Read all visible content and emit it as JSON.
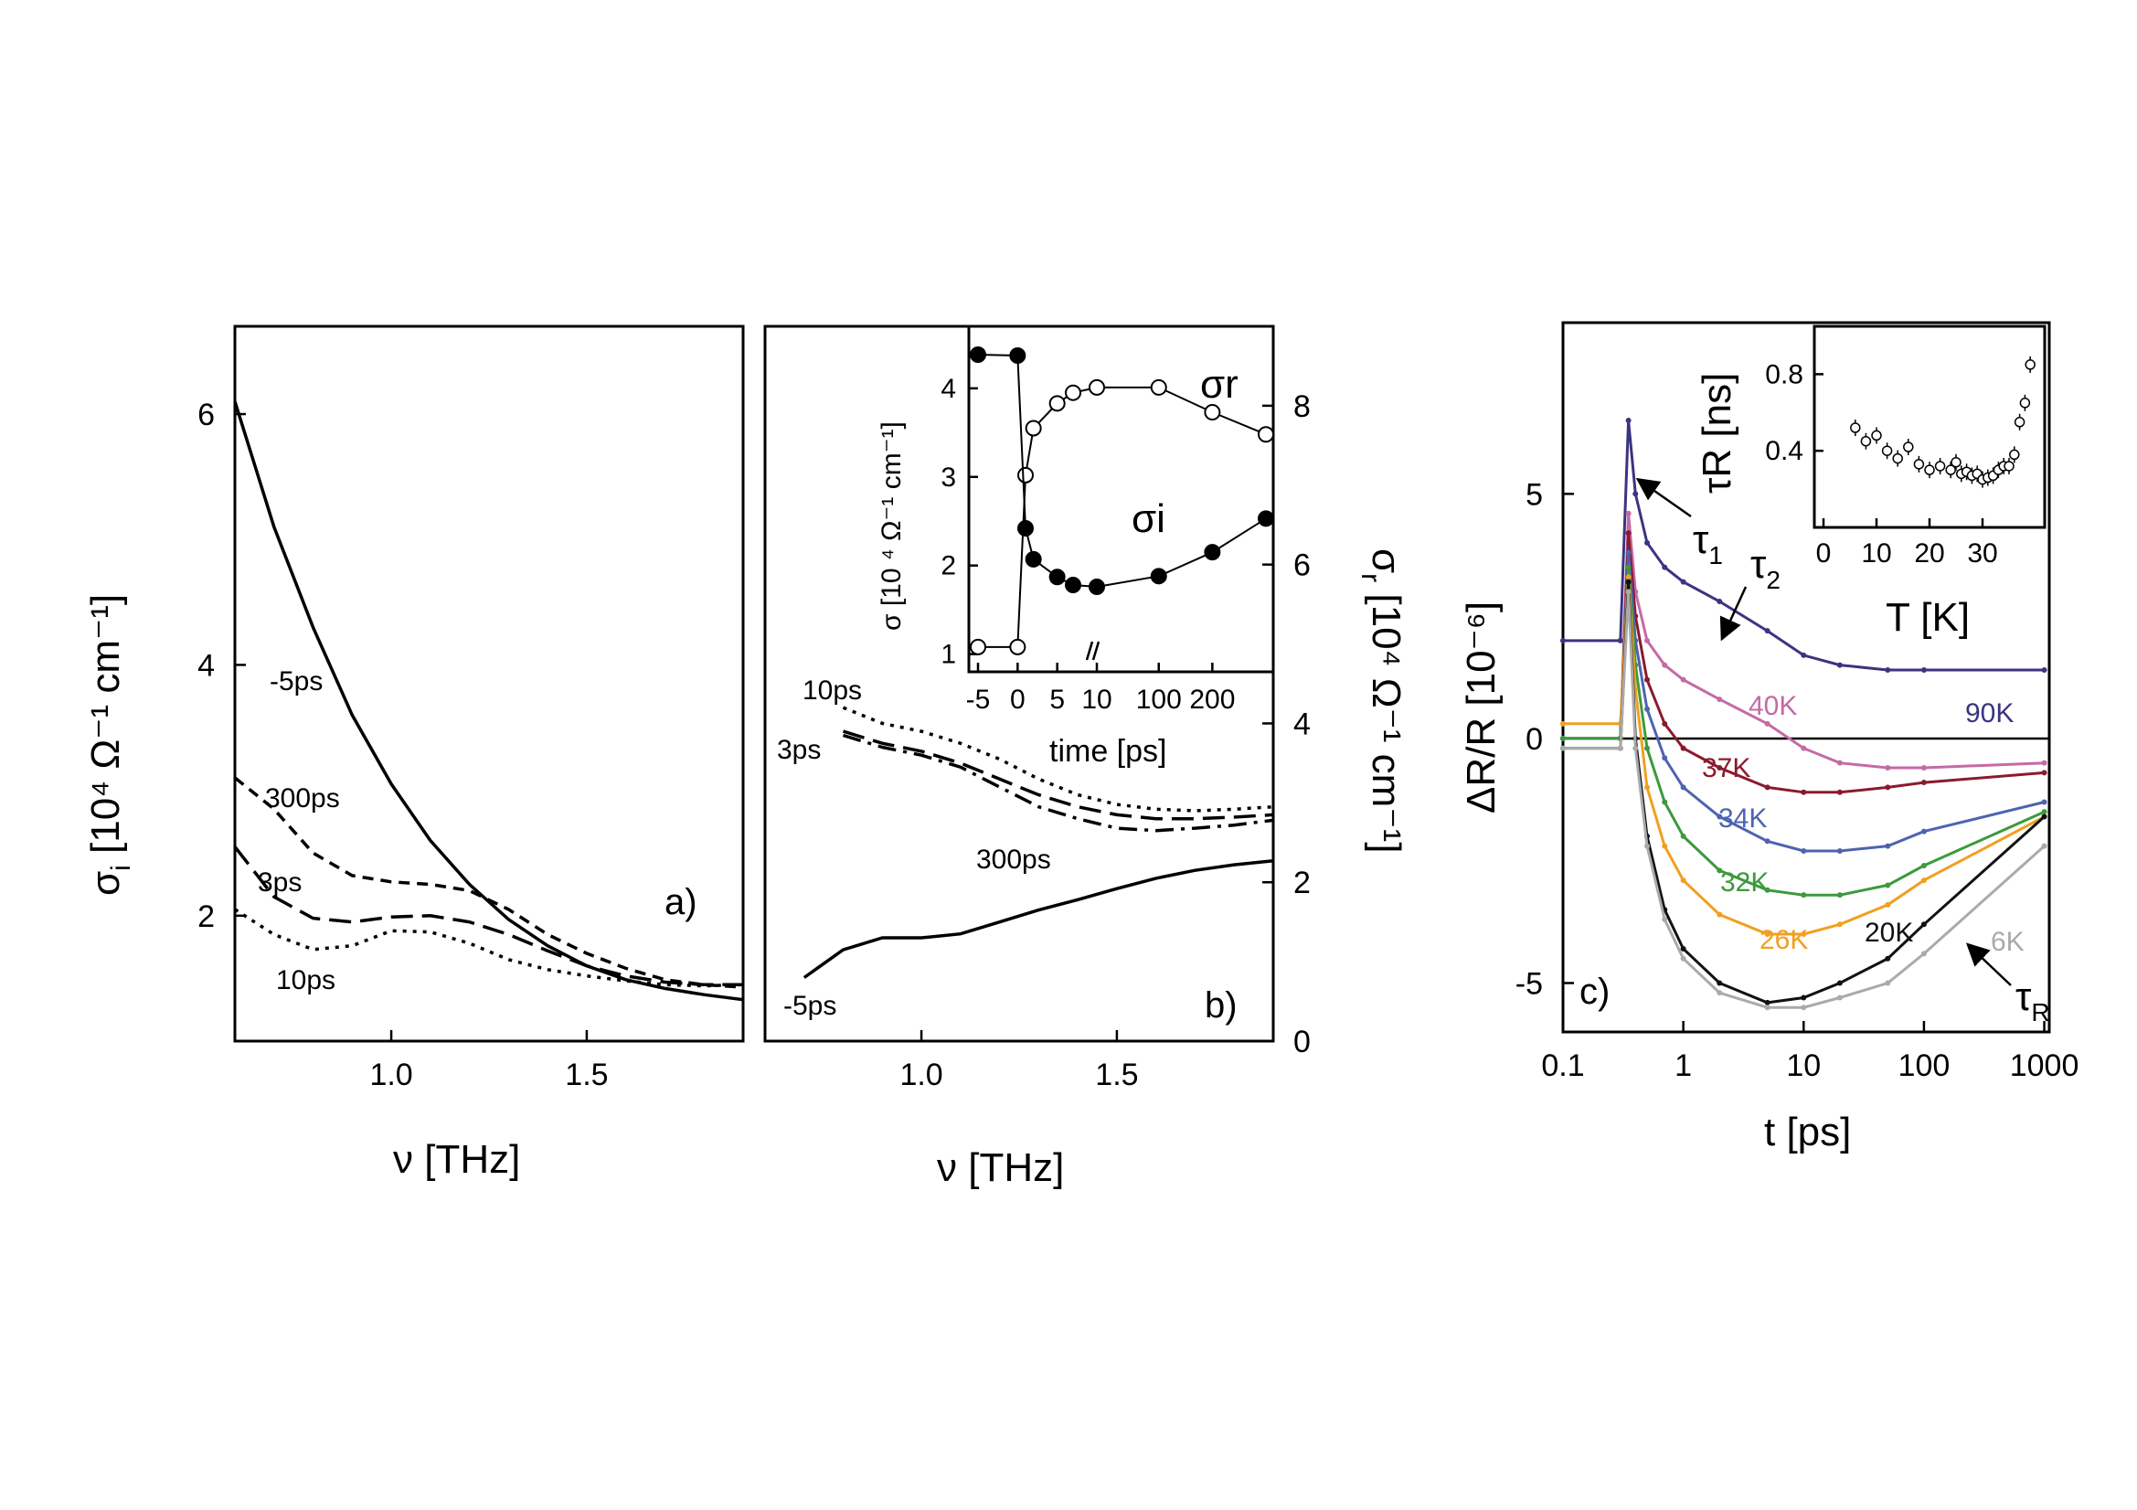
{
  "chart_data": [
    {
      "panel": "a)",
      "type": "line",
      "xlabel": "ν [THz]",
      "ylabel": "σ",
      "ylabel_sub": "i",
      "ylabel_units": "[10⁴ Ω⁻¹ cm⁻¹]",
      "xlim": [
        0.6,
        1.9
      ],
      "ylim": [
        1.0,
        6.7
      ],
      "xticks": [
        "1.0",
        "1.5"
      ],
      "xtick_values": [
        1.0,
        1.5
      ],
      "yticks": [
        "2",
        "4",
        "6"
      ],
      "ytick_values": [
        2,
        4,
        6
      ],
      "series": [
        {
          "name": "-5ps",
          "style": "solid",
          "x": [
            0.6,
            0.7,
            0.8,
            0.9,
            1.0,
            1.1,
            1.2,
            1.3,
            1.4,
            1.5,
            1.6,
            1.7,
            1.8,
            1.9
          ],
          "y": [
            6.1,
            5.1,
            4.3,
            3.6,
            3.05,
            2.6,
            2.25,
            1.97,
            1.76,
            1.6,
            1.49,
            1.42,
            1.37,
            1.33
          ]
        },
        {
          "name": "300ps",
          "style": "short-dash",
          "x": [
            0.6,
            0.7,
            0.8,
            0.9,
            1.0,
            1.1,
            1.2,
            1.3,
            1.4,
            1.5,
            1.6,
            1.7,
            1.8,
            1.9
          ],
          "y": [
            3.1,
            2.85,
            2.5,
            2.32,
            2.27,
            2.25,
            2.2,
            2.05,
            1.85,
            1.7,
            1.58,
            1.49,
            1.45,
            1.43
          ]
        },
        {
          "name": "3ps",
          "style": "long-dash",
          "x": [
            0.6,
            0.7,
            0.8,
            0.9,
            1.0,
            1.1,
            1.2,
            1.3,
            1.4,
            1.5,
            1.6,
            1.7,
            1.8,
            1.9
          ],
          "y": [
            2.55,
            2.15,
            1.98,
            1.95,
            1.99,
            2.0,
            1.95,
            1.85,
            1.72,
            1.6,
            1.52,
            1.47,
            1.45,
            1.45
          ]
        },
        {
          "name": "10ps",
          "style": "dotted",
          "x": [
            0.6,
            0.7,
            0.8,
            0.9,
            1.0,
            1.1,
            1.2,
            1.3,
            1.4,
            1.5,
            1.6,
            1.7,
            1.8,
            1.9
          ],
          "y": [
            2.05,
            1.85,
            1.73,
            1.76,
            1.88,
            1.87,
            1.78,
            1.65,
            1.57,
            1.52,
            1.48,
            1.45,
            1.44,
            1.45
          ]
        }
      ]
    },
    {
      "panel": "b)",
      "type": "line",
      "xlabel": "ν [THz]",
      "ylabel_right": "σ",
      "ylabel_right_sub": "r",
      "ylabel_right_units": "[10⁴ Ω⁻¹ cm⁻¹]",
      "xlim": [
        0.6,
        1.9
      ],
      "ylim": [
        0,
        9
      ],
      "xticks": [
        "1.0",
        "1.5"
      ],
      "xtick_values": [
        1.0,
        1.5
      ],
      "yticks": [
        "0",
        "2",
        "4",
        "6",
        "8"
      ],
      "ytick_values": [
        0,
        2,
        4,
        6,
        8
      ],
      "series": [
        {
          "name": "-5ps",
          "style": "solid",
          "x": [
            0.7,
            0.8,
            0.9,
            1.0,
            1.1,
            1.2,
            1.3,
            1.4,
            1.5,
            1.6,
            1.7,
            1.8,
            1.9
          ],
          "y": [
            0.8,
            1.15,
            1.3,
            1.3,
            1.35,
            1.5,
            1.65,
            1.78,
            1.92,
            2.05,
            2.15,
            2.22,
            2.27
          ]
        },
        {
          "name": "10ps",
          "style": "dotted",
          "x": [
            0.8,
            0.9,
            1.0,
            1.1,
            1.2,
            1.3,
            1.4,
            1.5,
            1.6,
            1.7,
            1.8,
            1.9
          ],
          "y": [
            4.2,
            4.0,
            3.9,
            3.75,
            3.55,
            3.3,
            3.1,
            2.98,
            2.92,
            2.9,
            2.92,
            2.95
          ]
        },
        {
          "name": "3ps",
          "style": "long-dash",
          "x": [
            0.8,
            0.9,
            1.0,
            1.1,
            1.2,
            1.3,
            1.4,
            1.5,
            1.6,
            1.7,
            1.8,
            1.9
          ],
          "y": [
            3.9,
            3.75,
            3.65,
            3.5,
            3.3,
            3.1,
            2.95,
            2.85,
            2.8,
            2.8,
            2.82,
            2.85
          ]
        },
        {
          "name": "300ps",
          "style": "dash-dot",
          "x": [
            0.8,
            0.9,
            1.0,
            1.1,
            1.2,
            1.3,
            1.4,
            1.5,
            1.6,
            1.7,
            1.8,
            1.9
          ],
          "y": [
            3.85,
            3.7,
            3.6,
            3.45,
            3.2,
            2.95,
            2.8,
            2.68,
            2.65,
            2.68,
            2.72,
            2.78
          ]
        }
      ],
      "inset": {
        "type": "scatter-line",
        "xlabel": "time [ps]",
        "ylabel": "σ [10 ⁴ Ω⁻¹ cm⁻¹]",
        "ylim": [
          0.8,
          4.7
        ],
        "yticks": [
          "1",
          "2",
          "3",
          "4"
        ],
        "ytick_values": [
          1,
          2,
          3,
          4
        ],
        "xticks": [
          "-5",
          "0",
          "5",
          "10",
          "100",
          "200"
        ],
        "axis_break": true,
        "series": [
          {
            "name": "σr",
            "name_sub": "r",
            "marker": "open-circle",
            "x": [
              -5,
              0,
              1,
              2,
              5,
              7,
              10,
              100,
              200,
              300
            ],
            "y": [
              1.08,
              1.08,
              3.02,
              3.55,
              3.83,
              3.95,
              4.01,
              4.01,
              3.73,
              3.48
            ]
          },
          {
            "name": "σi",
            "name_sub": "i",
            "marker": "filled-circle",
            "x": [
              -5,
              0,
              1,
              2,
              5,
              7,
              10,
              100,
              200,
              300
            ],
            "y": [
              4.38,
              4.37,
              2.42,
              2.07,
              1.87,
              1.78,
              1.76,
              1.88,
              2.15,
              2.53
            ]
          }
        ]
      }
    },
    {
      "panel": "c)",
      "type": "line",
      "xscale": "log",
      "xlabel": "t [ps]",
      "ylabel": "ΔR/R [10⁻⁶]",
      "xlim": [
        0.1,
        1100
      ],
      "ylim": [
        -6.0,
        8.5
      ],
      "xticks": [
        "0.1",
        "1",
        "10",
        "100",
        "1000"
      ],
      "xtick_values": [
        0.1,
        1,
        10,
        100,
        1000
      ],
      "yticks": [
        "-5",
        "0",
        "5"
      ],
      "ytick_values": [
        -5,
        0,
        5
      ],
      "annotations": [
        "τ1",
        "τ2",
        "τR"
      ],
      "series": [
        {
          "name": "90K",
          "color": "#3b3480",
          "x": [
            0.1,
            0.3,
            0.35,
            0.4,
            0.5,
            0.7,
            1,
            2,
            5,
            10,
            20,
            50,
            100,
            1000
          ],
          "y": [
            2.0,
            2.0,
            6.5,
            5.0,
            4.0,
            3.5,
            3.2,
            2.8,
            2.2,
            1.7,
            1.5,
            1.4,
            1.4,
            1.4
          ]
        },
        {
          "name": "40K",
          "color": "#c56aa6",
          "x": [
            0.1,
            0.3,
            0.35,
            0.4,
            0.5,
            0.7,
            1,
            2,
            5,
            10,
            20,
            50,
            100,
            1000
          ],
          "y": [
            0.0,
            0.0,
            4.6,
            3.0,
            2.0,
            1.5,
            1.2,
            0.8,
            0.3,
            -0.2,
            -0.5,
            -0.6,
            -0.6,
            -0.5
          ]
        },
        {
          "name": "37K",
          "color": "#8b1a2e",
          "x": [
            0.1,
            0.3,
            0.35,
            0.4,
            0.5,
            0.7,
            1,
            2,
            5,
            10,
            20,
            50,
            100,
            1000
          ],
          "y": [
            0.0,
            0.0,
            4.2,
            2.5,
            1.2,
            0.3,
            -0.2,
            -0.6,
            -1.0,
            -1.1,
            -1.1,
            -1.0,
            -0.9,
            -0.7
          ]
        },
        {
          "name": "34K",
          "color": "#4e63b0",
          "x": [
            0.1,
            0.3,
            0.35,
            0.4,
            0.5,
            0.7,
            1,
            2,
            5,
            10,
            20,
            50,
            100,
            1000
          ],
          "y": [
            0.0,
            0.0,
            3.8,
            2.0,
            0.6,
            -0.4,
            -1.0,
            -1.6,
            -2.1,
            -2.3,
            -2.3,
            -2.2,
            -1.9,
            -1.3
          ]
        },
        {
          "name": "32K",
          "color": "#3c9a3c",
          "x": [
            0.1,
            0.3,
            0.35,
            0.4,
            0.5,
            0.7,
            1,
            2,
            5,
            10,
            20,
            50,
            100,
            1000
          ],
          "y": [
            0.0,
            0.0,
            3.5,
            1.5,
            -0.2,
            -1.3,
            -2.0,
            -2.7,
            -3.1,
            -3.2,
            -3.2,
            -3.0,
            -2.6,
            -1.5
          ]
        },
        {
          "name": "26K",
          "color": "#f0a020",
          "x": [
            0.1,
            0.3,
            0.35,
            0.4,
            0.5,
            0.7,
            1,
            2,
            5,
            10,
            20,
            50,
            100,
            1000
          ],
          "y": [
            0.3,
            0.3,
            3.3,
            1.0,
            -1.0,
            -2.2,
            -2.9,
            -3.6,
            -4.0,
            -4.0,
            -3.8,
            -3.4,
            -2.9,
            -1.6
          ]
        },
        {
          "name": "20K",
          "color": "#111111",
          "x": [
            0.1,
            0.3,
            0.35,
            0.4,
            0.5,
            0.7,
            1,
            2,
            5,
            10,
            20,
            50,
            100,
            1000
          ],
          "y": [
            -0.2,
            -0.2,
            3.2,
            0.0,
            -2.0,
            -3.5,
            -4.3,
            -5.0,
            -5.4,
            -5.3,
            -5.0,
            -4.5,
            -3.8,
            -1.6
          ]
        },
        {
          "name": "6K",
          "color": "#aaaaaa",
          "x": [
            0.1,
            0.3,
            0.35,
            0.4,
            0.5,
            0.7,
            1,
            2,
            5,
            10,
            20,
            50,
            100,
            1000
          ],
          "y": [
            -0.2,
            -0.2,
            3.0,
            -0.2,
            -2.2,
            -3.7,
            -4.5,
            -5.2,
            -5.5,
            -5.5,
            -5.3,
            -5.0,
            -4.4,
            -2.2
          ]
        }
      ],
      "inset": {
        "type": "scatter",
        "xlabel": "T [K]",
        "ylabel": "τR [ns]",
        "ylabel_sub": "R",
        "xlim": [
          0,
          40
        ],
        "ylim": [
          0.0,
          1.05
        ],
        "xticks": [
          "0",
          "10",
          "20",
          "30"
        ],
        "xtick_values": [
          0,
          10,
          20,
          30
        ],
        "yticks": [
          "0.4",
          "0.8"
        ],
        "ytick_values": [
          0.4,
          0.8
        ],
        "x": [
          6,
          8,
          10,
          12,
          14,
          16,
          18,
          20,
          22,
          24,
          25,
          26,
          27,
          28,
          29,
          30,
          31,
          32,
          33,
          34,
          35,
          36,
          37,
          38,
          39
        ],
        "y": [
          0.52,
          0.45,
          0.48,
          0.4,
          0.36,
          0.42,
          0.33,
          0.3,
          0.32,
          0.3,
          0.34,
          0.28,
          0.29,
          0.27,
          0.28,
          0.25,
          0.26,
          0.27,
          0.3,
          0.32,
          0.32,
          0.38,
          0.55,
          0.65,
          0.85
        ]
      }
    }
  ]
}
